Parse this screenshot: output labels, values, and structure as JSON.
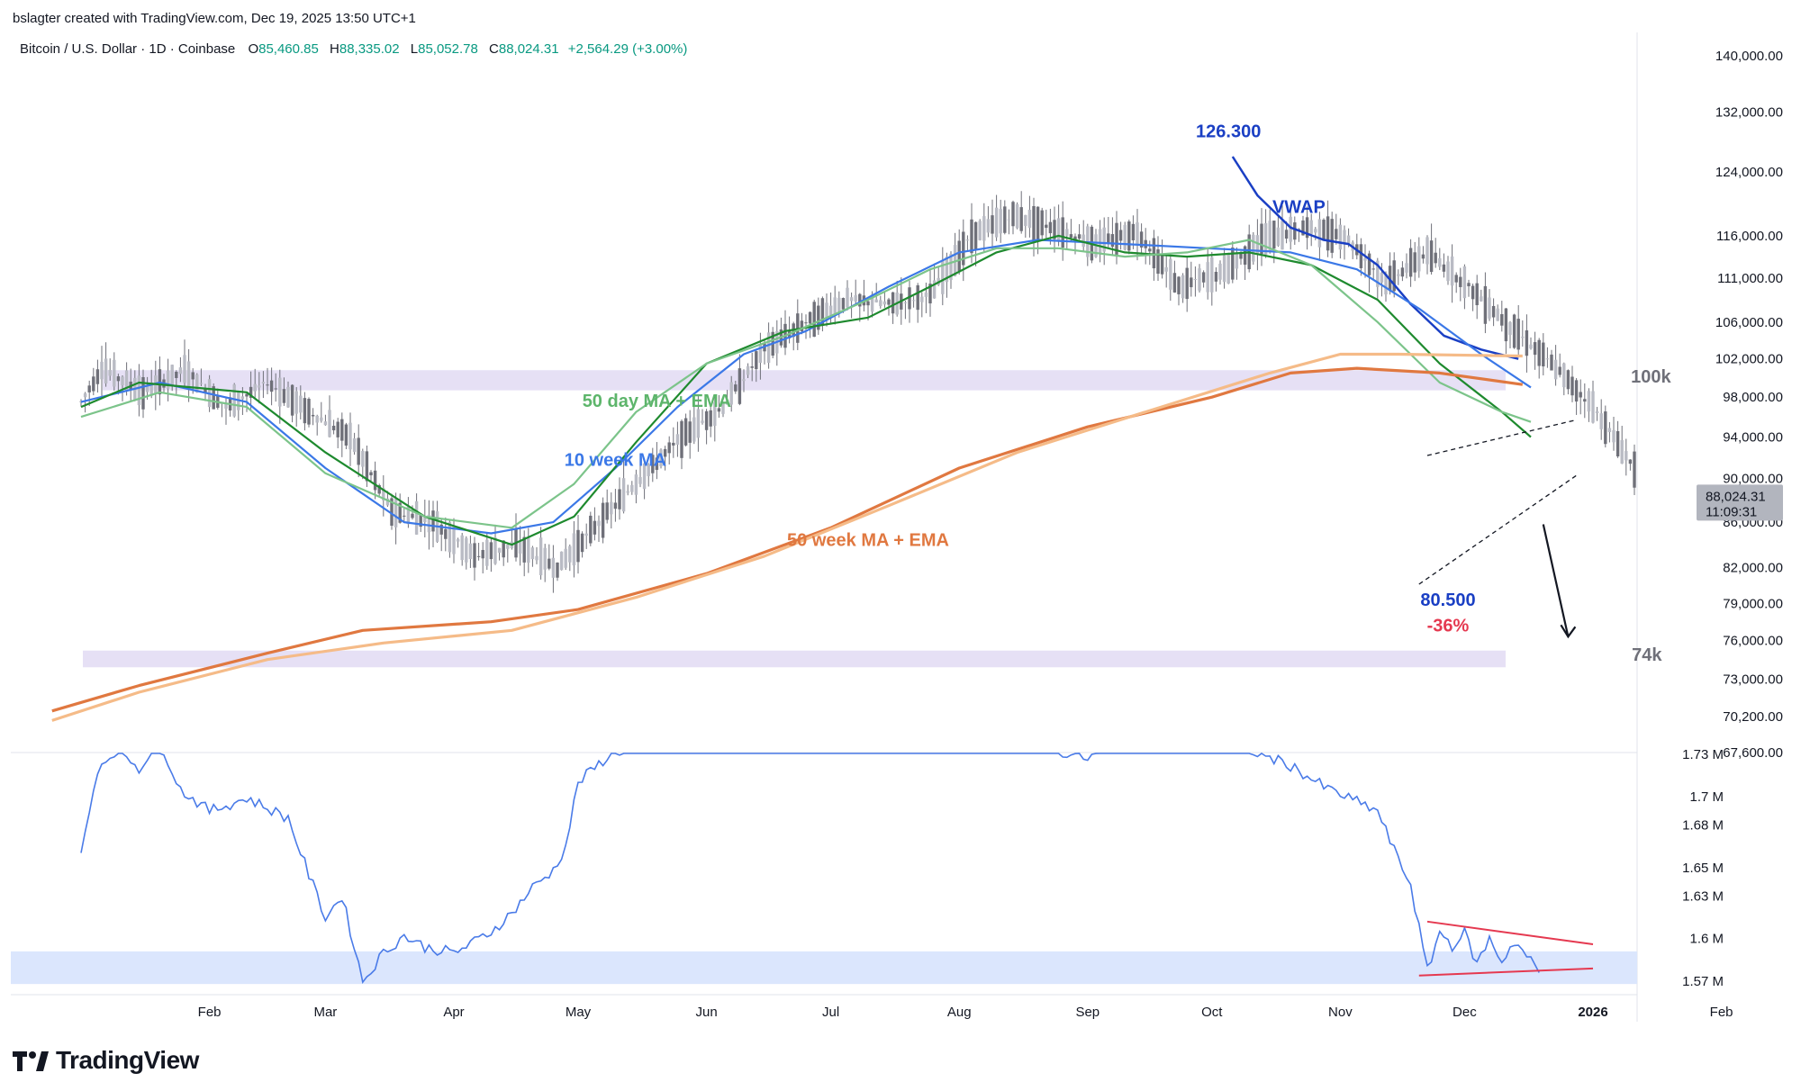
{
  "attribution": "bslagter created with TradingView.com, Dec 19, 2025 13:50 UTC+1",
  "header": {
    "symbol": "Bitcoin / U.S. Dollar · 1D · Coinbase",
    "open_label": "O",
    "open": "85,460.85",
    "high_label": "H",
    "high": "88,335.02",
    "low_label": "L",
    "low": "85,052.78",
    "close_label": "C",
    "close": "88,024.31",
    "change": "+2,564.29 (+3.00%)"
  },
  "price_label": {
    "price": "88,024.31",
    "countdown": "11:09:31"
  },
  "brand": "TradingView",
  "colors": {
    "candle": "#6f7079",
    "vwap": "#1a3fc4",
    "ma10w": "#3b78e7",
    "ma50d": "#1e8a2e",
    "ema50d": "#7cc48a",
    "ma50w": "#e07840",
    "ema50w": "#f5bb88",
    "zone": "#e6e0f5",
    "volume": "#4a7be8",
    "volume_zone": "#dbe6fd",
    "trend": "#e53950",
    "accent_red": "#e53950"
  },
  "chart_data": {
    "type": "line",
    "price_axis": {
      "ticks": [
        "140,000.00",
        "132,000.00",
        "124,000.00",
        "116,000.00",
        "111,000.00",
        "106,000.00",
        "102,000.00",
        "98,000.00",
        "94,000.00",
        "90,000.00",
        "86,000.00",
        "82,000.00",
        "79,000.00",
        "76,000.00",
        "73,000.00",
        "70,200.00",
        "67,600.00"
      ],
      "scale": "log"
    },
    "volume_axis": {
      "ticks": [
        "1.73 M",
        "1.7 M",
        "1.68 M",
        "1.65 M",
        "1.63 M",
        "1.6 M",
        "1.57 M"
      ]
    },
    "time_axis": {
      "ticks": [
        "Feb",
        "Mar",
        "Apr",
        "May",
        "Jun",
        "Jul",
        "Aug",
        "Sep",
        "Oct",
        "Nov",
        "Dec",
        "2026",
        "Feb"
      ]
    },
    "series": [
      {
        "name": "VWAP",
        "values": [
          [
            "2025-10-06",
            126000
          ],
          [
            "2025-10-12",
            121000
          ],
          [
            "2025-10-20",
            117000
          ],
          [
            "2025-10-28",
            115500
          ],
          [
            "2025-11-03",
            115000
          ],
          [
            "2025-11-10",
            112500
          ],
          [
            "2025-11-18",
            108000
          ],
          [
            "2025-11-26",
            104500
          ],
          [
            "2025-12-05",
            103000
          ],
          [
            "2025-12-14",
            102000
          ]
        ]
      },
      {
        "name": "10 week MA",
        "values": [
          [
            "2025-01-01",
            97500
          ],
          [
            "2025-01-20",
            99500
          ],
          [
            "2025-02-10",
            97500
          ],
          [
            "2025-03-01",
            91000
          ],
          [
            "2025-03-20",
            86000
          ],
          [
            "2025-04-10",
            85000
          ],
          [
            "2025-04-25",
            86000
          ],
          [
            "2025-05-10",
            91000
          ],
          [
            "2025-05-25",
            97000
          ],
          [
            "2025-06-10",
            102500
          ],
          [
            "2025-06-25",
            105000
          ],
          [
            "2025-07-15",
            110000
          ],
          [
            "2025-08-01",
            114000
          ],
          [
            "2025-08-20",
            115500
          ],
          [
            "2025-09-10",
            115000
          ],
          [
            "2025-09-30",
            114500
          ],
          [
            "2025-10-20",
            114000
          ],
          [
            "2025-11-05",
            112000
          ],
          [
            "2025-11-20",
            107500
          ],
          [
            "2025-12-05",
            102500
          ],
          [
            "2025-12-17",
            99000
          ]
        ]
      },
      {
        "name": "50 day MA",
        "values": [
          [
            "2025-01-01",
            97000
          ],
          [
            "2025-01-15",
            99500
          ],
          [
            "2025-02-10",
            98500
          ],
          [
            "2025-03-01",
            92500
          ],
          [
            "2025-03-25",
            86500
          ],
          [
            "2025-04-15",
            84000
          ],
          [
            "2025-04-30",
            86500
          ],
          [
            "2025-05-15",
            93500
          ],
          [
            "2025-06-01",
            101500
          ],
          [
            "2025-06-20",
            105000
          ],
          [
            "2025-07-10",
            106500
          ],
          [
            "2025-07-25",
            110000
          ],
          [
            "2025-08-10",
            114000
          ],
          [
            "2025-08-25",
            116000
          ],
          [
            "2025-09-10",
            114000
          ],
          [
            "2025-09-25",
            113500
          ],
          [
            "2025-10-10",
            114000
          ],
          [
            "2025-10-25",
            112500
          ],
          [
            "2025-11-10",
            108500
          ],
          [
            "2025-11-25",
            101500
          ],
          [
            "2025-12-10",
            96500
          ],
          [
            "2025-12-17",
            94000
          ]
        ]
      },
      {
        "name": "50 day EMA",
        "values": [
          [
            "2025-01-01",
            96000
          ],
          [
            "2025-01-20",
            98500
          ],
          [
            "2025-02-10",
            97000
          ],
          [
            "2025-03-01",
            90500
          ],
          [
            "2025-03-25",
            86500
          ],
          [
            "2025-04-15",
            85500
          ],
          [
            "2025-04-30",
            89500
          ],
          [
            "2025-05-15",
            96500
          ],
          [
            "2025-06-01",
            101500
          ],
          [
            "2025-06-20",
            104500
          ],
          [
            "2025-07-10",
            108500
          ],
          [
            "2025-07-25",
            112000
          ],
          [
            "2025-08-10",
            114500
          ],
          [
            "2025-08-25",
            114500
          ],
          [
            "2025-09-10",
            113500
          ],
          [
            "2025-09-25",
            114000
          ],
          [
            "2025-10-10",
            115500
          ],
          [
            "2025-10-25",
            112500
          ],
          [
            "2025-11-10",
            106000
          ],
          [
            "2025-11-25",
            99500
          ],
          [
            "2025-12-10",
            96500
          ],
          [
            "2025-12-17",
            95500
          ]
        ]
      },
      {
        "name": "50 week MA",
        "values": [
          [
            "2024-12-25",
            70600
          ],
          [
            "2025-01-15",
            72500
          ],
          [
            "2025-02-15",
            75000
          ],
          [
            "2025-03-10",
            76800
          ],
          [
            "2025-04-10",
            77500
          ],
          [
            "2025-05-01",
            78500
          ],
          [
            "2025-06-01",
            81500
          ],
          [
            "2025-07-01",
            85500
          ],
          [
            "2025-08-01",
            91000
          ],
          [
            "2025-09-01",
            95000
          ],
          [
            "2025-10-01",
            98000
          ],
          [
            "2025-10-20",
            100500
          ],
          [
            "2025-11-05",
            101000
          ],
          [
            "2025-11-25",
            100500
          ],
          [
            "2025-12-15",
            99300
          ]
        ]
      },
      {
        "name": "50 week EMA",
        "values": [
          [
            "2024-12-25",
            69900
          ],
          [
            "2025-01-15",
            72000
          ],
          [
            "2025-02-15",
            74500
          ],
          [
            "2025-03-15",
            75800
          ],
          [
            "2025-04-15",
            76800
          ],
          [
            "2025-05-15",
            79500
          ],
          [
            "2025-06-15",
            83000
          ],
          [
            "2025-07-15",
            87500
          ],
          [
            "2025-08-15",
            92500
          ],
          [
            "2025-09-15",
            96500
          ],
          [
            "2025-10-15",
            100500
          ],
          [
            "2025-11-01",
            102500
          ],
          [
            "2025-11-15",
            102500
          ],
          [
            "2025-12-15",
            102300
          ]
        ]
      },
      {
        "name": "Volume",
        "values": [
          [
            "2025-01-01",
            1.658
          ],
          [
            "2025-01-05",
            1.72
          ],
          [
            "2025-01-10",
            1.735
          ],
          [
            "2025-01-15",
            1.72
          ],
          [
            "2025-01-20",
            1.74
          ],
          [
            "2025-01-25",
            1.705
          ],
          [
            "2025-02-01",
            1.69
          ],
          [
            "2025-02-10",
            1.699
          ],
          [
            "2025-02-20",
            1.685
          ],
          [
            "2025-02-25",
            1.645
          ],
          [
            "2025-03-01",
            1.615
          ],
          [
            "2025-03-05",
            1.63
          ],
          [
            "2025-03-10",
            1.57
          ],
          [
            "2025-03-15",
            1.59
          ],
          [
            "2025-03-20",
            1.602
          ],
          [
            "2025-03-25",
            1.594
          ],
          [
            "2025-04-01",
            1.59
          ],
          [
            "2025-04-05",
            1.596
          ],
          [
            "2025-04-10",
            1.605
          ],
          [
            "2025-04-15",
            1.618
          ],
          [
            "2025-04-20",
            1.636
          ],
          [
            "2025-04-25",
            1.648
          ],
          [
            "2025-04-28",
            1.665
          ],
          [
            "2025-05-01",
            1.71
          ],
          [
            "2025-05-08",
            1.728
          ],
          [
            "2025-05-15",
            1.738
          ],
          [
            "2025-06-01",
            1.745
          ],
          [
            "2025-06-20",
            1.748
          ],
          [
            "2025-07-10",
            1.742
          ],
          [
            "2025-08-01",
            1.75
          ],
          [
            "2025-08-20",
            1.736
          ],
          [
            "2025-09-01",
            1.727
          ],
          [
            "2025-09-10",
            1.738
          ],
          [
            "2025-09-20",
            1.74
          ],
          [
            "2025-10-01",
            1.743
          ],
          [
            "2025-10-10",
            1.733
          ],
          [
            "2025-10-20",
            1.722
          ],
          [
            "2025-10-28",
            1.707
          ],
          [
            "2025-11-03",
            1.699
          ],
          [
            "2025-11-10",
            1.69
          ],
          [
            "2025-11-14",
            1.662
          ],
          [
            "2025-11-18",
            1.638
          ],
          [
            "2025-11-22",
            1.577
          ],
          [
            "2025-11-25",
            1.605
          ],
          [
            "2025-11-28",
            1.595
          ],
          [
            "2025-12-01",
            1.604
          ],
          [
            "2025-12-04",
            1.582
          ],
          [
            "2025-12-07",
            1.6
          ],
          [
            "2025-12-10",
            1.584
          ],
          [
            "2025-12-13",
            1.598
          ],
          [
            "2025-12-16",
            1.588
          ],
          [
            "2025-12-19",
            1.576
          ]
        ]
      }
    ],
    "zones": [
      {
        "label": "100k",
        "low": 98700,
        "high": 100800
      },
      {
        "label": "74k",
        "low": 73900,
        "high": 75200
      }
    ],
    "annotations": [
      {
        "text": "126.300",
        "x": "2025-10-05",
        "y": 128600,
        "color": "#1a3fc4"
      },
      {
        "text": "VWAP",
        "x": "2025-10-22",
        "y": 118800,
        "color": "#1a3fc4"
      },
      {
        "text": "50 day MA + EMA",
        "x": "2025-05-20",
        "y": 97000,
        "color": "#5db56b"
      },
      {
        "text": "10 week MA",
        "x": "2025-05-10",
        "y": 91200,
        "color": "#3b78e7"
      },
      {
        "text": "50 week MA + EMA",
        "x": "2025-07-10",
        "y": 83900,
        "color": "#e07840"
      },
      {
        "text": "80.500",
        "x": "2025-11-27",
        "y": 78800,
        "color": "#1a3fc4"
      },
      {
        "text": "-36%",
        "x": "2025-11-27",
        "y": 76700,
        "color": "#e53950"
      },
      {
        "text": "100k",
        "x": "2026-01-15",
        "y": 99500,
        "color": "#6f7079"
      },
      {
        "text": "74k",
        "x": "2026-01-14",
        "y": 74400,
        "color": "#6f7079"
      }
    ]
  }
}
